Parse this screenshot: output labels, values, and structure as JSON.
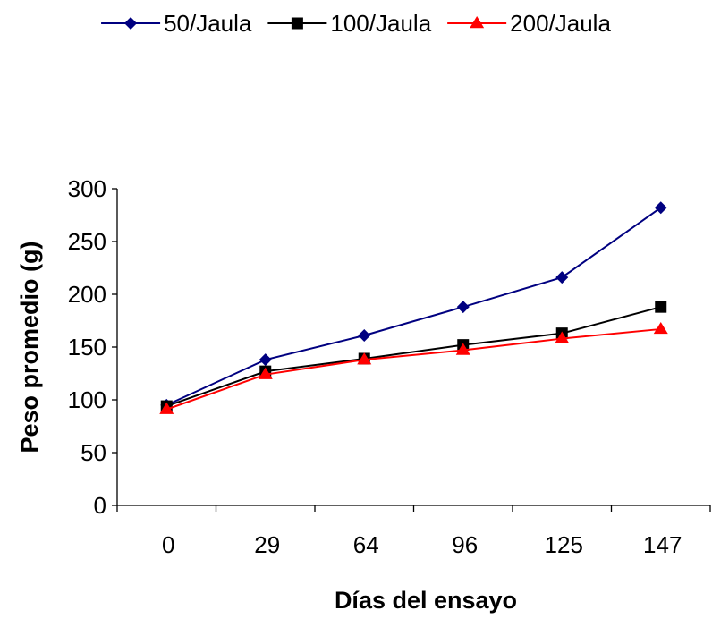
{
  "chart_data": {
    "type": "line",
    "title": "",
    "xlabel": "Días del ensayo",
    "ylabel": "Peso promedio (g)",
    "categories": [
      "0",
      "29",
      "64",
      "96",
      "125",
      "147"
    ],
    "ylim": [
      0,
      300
    ],
    "yticks": [
      0,
      50,
      100,
      150,
      200,
      250,
      300
    ],
    "grid": false,
    "legend_position": "top",
    "series": [
      {
        "name": "50/Jaula",
        "color": "#000080",
        "marker": "diamond",
        "values": [
          95,
          138,
          161,
          188,
          216,
          282
        ]
      },
      {
        "name": "100/Jaula",
        "color": "#000000",
        "marker": "square",
        "values": [
          94,
          127,
          139,
          152,
          163,
          188
        ]
      },
      {
        "name": "200/Jaula",
        "color": "#ff0000",
        "marker": "triangle",
        "values": [
          91,
          124,
          138,
          147,
          158,
          167
        ]
      }
    ]
  }
}
